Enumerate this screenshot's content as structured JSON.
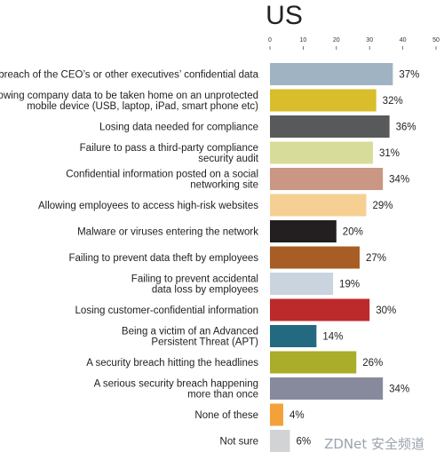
{
  "watermark": "ZDNet 安全频道",
  "chart_data": {
    "type": "bar",
    "orientation": "horizontal",
    "title": "US",
    "xlim": [
      0,
      50
    ],
    "xticks": [
      0,
      10,
      20,
      30,
      40,
      50
    ],
    "value_suffix": "%",
    "categories": [
      [
        "A breach of the CEO’s or other executives’ confidential data"
      ],
      [
        "Allowing company data to be taken home on an unprotected",
        "mobile device (USB, laptop, iPad, smart phone etc)"
      ],
      [
        "Losing data needed for compliance"
      ],
      [
        "Failure to pass a third-party compliance",
        "security audit"
      ],
      [
        "Confidential information posted on a social",
        "networking site"
      ],
      [
        "Allowing employees to access high-risk websites"
      ],
      [
        "Malware or viruses entering the network"
      ],
      [
        "Failing to prevent data theft by employees"
      ],
      [
        "Failing to prevent accidental",
        "data loss by employees"
      ],
      [
        "Losing customer-confidential information"
      ],
      [
        "Being a victim of an Advanced",
        "Persistent Threat (APT)"
      ],
      [
        "A security breach hitting the headlines"
      ],
      [
        "A serious security breach happening",
        "more than once"
      ],
      [
        "None of these"
      ],
      [
        "Not sure"
      ]
    ],
    "values": [
      37,
      32,
      36,
      31,
      34,
      29,
      20,
      27,
      19,
      30,
      14,
      26,
      34,
      4,
      6
    ],
    "colors": [
      "#9fb3c3",
      "#d9bd2a",
      "#58595b",
      "#d7dc9a",
      "#c99783",
      "#f6cf93",
      "#231f20",
      "#a85d24",
      "#c9d4df",
      "#bd2a2b",
      "#236a80",
      "#a9ad2a",
      "#878a9c",
      "#f3a23a",
      "#d1d3d4"
    ]
  }
}
